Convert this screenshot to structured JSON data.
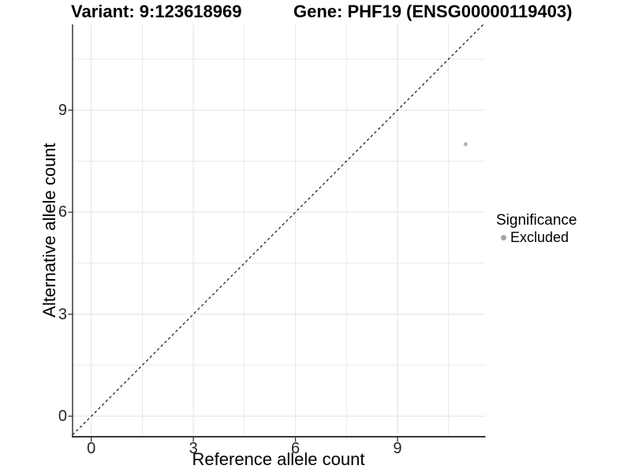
{
  "figure": {
    "title_variant": "Variant: 9:123618969",
    "title_gene": "Gene: PHF19 (ENSG00000119403)"
  },
  "chart_data": {
    "type": "scatter",
    "xlabel": "Reference allele count",
    "ylabel": "Alternative allele count",
    "xlim": [
      -0.55,
      11.55
    ],
    "ylim": [
      -0.58,
      11.52
    ],
    "x_major_ticks": [
      0,
      3,
      6,
      9
    ],
    "y_major_ticks": [
      0,
      3,
      6,
      9
    ],
    "x_minor_ticks": [
      1.5,
      4.5,
      7.5,
      10.5
    ],
    "y_minor_ticks": [
      1.5,
      4.5,
      7.5,
      10.5
    ],
    "grid": true,
    "points": [
      {
        "x": 11,
        "y": 8,
        "significance": "Excluded"
      }
    ],
    "identity_line": {
      "slope": 1,
      "intercept": 0,
      "linetype": "dashed",
      "color": "#000000"
    },
    "legend": {
      "title": "Significance",
      "position": "right",
      "entries": [
        {
          "label": "Excluded",
          "color": "#a3a3a3"
        }
      ]
    },
    "colors": {
      "point": "#b5b5b5",
      "gridline": "#e8e8e8",
      "axis_line": "#383838",
      "tick_mark": "#333333"
    }
  }
}
